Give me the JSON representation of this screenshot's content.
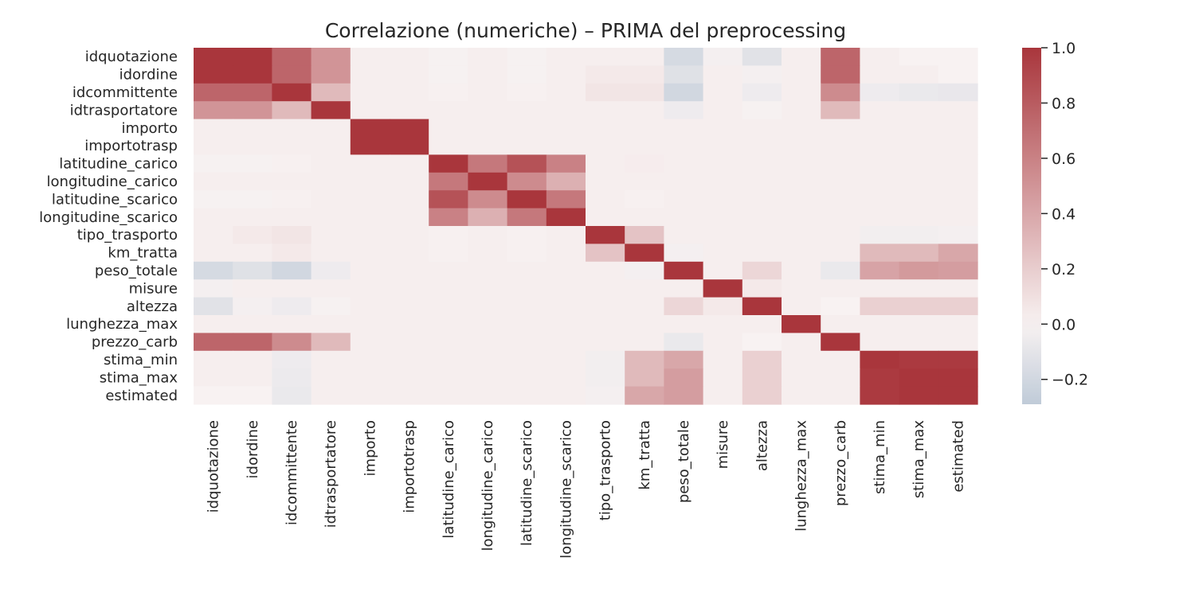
{
  "chart_data": {
    "type": "heatmap",
    "title": "Correlazione (numeriche) – PRIMA del preprocessing",
    "xlabel": "",
    "ylabel": "",
    "labels": [
      "idquotazione",
      "idordine",
      "idcommittente",
      "idtrasportatore",
      "importo",
      "importotrasp",
      "latitudine_carico",
      "longitudine_carico",
      "latitudine_scarico",
      "longitudine_scarico",
      "tipo_trasporto",
      "km_tratta",
      "peso_totale",
      "misure",
      "altezza",
      "lunghezza_max",
      "prezzo_carb",
      "stima_min",
      "stima_max",
      "estimated"
    ],
    "matrix": [
      [
        1.0,
        1.0,
        0.75,
        0.5,
        0.02,
        0.02,
        -0.01,
        0.02,
        -0.01,
        0.02,
        0.02,
        0.02,
        -0.18,
        -0.02,
        -0.12,
        0.02,
        0.75,
        0.02,
        0.0,
        0.0
      ],
      [
        1.0,
        1.0,
        0.75,
        0.5,
        0.02,
        0.02,
        -0.01,
        0.02,
        -0.01,
        0.02,
        0.05,
        0.05,
        -0.13,
        0.02,
        -0.02,
        0.02,
        0.75,
        0.02,
        0.02,
        0.0
      ],
      [
        0.75,
        0.75,
        1.0,
        0.3,
        0.02,
        0.02,
        0.01,
        0.02,
        0.01,
        0.02,
        0.07,
        0.07,
        -0.2,
        0.02,
        -0.05,
        0.02,
        0.55,
        -0.05,
        -0.07,
        -0.08
      ],
      [
        0.5,
        0.5,
        0.3,
        1.0,
        0.02,
        0.02,
        0.02,
        0.02,
        0.02,
        0.02,
        0.02,
        0.02,
        -0.05,
        0.02,
        -0.01,
        0.02,
        0.3,
        0.02,
        0.02,
        0.02
      ],
      [
        0.02,
        0.02,
        0.02,
        0.02,
        1.0,
        1.0,
        0.02,
        0.02,
        0.02,
        0.02,
        0.02,
        0.02,
        0.02,
        0.02,
        0.02,
        0.02,
        0.02,
        0.02,
        0.02,
        0.02
      ],
      [
        0.02,
        0.02,
        0.02,
        0.02,
        1.0,
        1.0,
        0.02,
        0.02,
        0.02,
        0.02,
        0.02,
        0.02,
        0.02,
        0.02,
        0.02,
        0.02,
        0.02,
        0.02,
        0.02,
        0.02
      ],
      [
        -0.01,
        -0.01,
        0.01,
        0.02,
        0.02,
        0.02,
        1.0,
        0.65,
        0.85,
        0.6,
        0.02,
        0.03,
        0.02,
        0.02,
        0.02,
        0.02,
        0.02,
        0.02,
        0.02,
        0.02
      ],
      [
        0.02,
        0.02,
        0.02,
        0.02,
        0.02,
        0.02,
        0.65,
        1.0,
        0.55,
        0.35,
        0.02,
        0.02,
        0.02,
        0.02,
        0.02,
        0.02,
        0.02,
        0.02,
        0.02,
        0.02
      ],
      [
        -0.01,
        -0.01,
        0.01,
        0.02,
        0.02,
        0.02,
        0.85,
        0.55,
        1.0,
        0.65,
        0.02,
        0.01,
        0.02,
        0.02,
        0.02,
        0.02,
        0.02,
        0.02,
        0.02,
        0.02
      ],
      [
        0.02,
        0.02,
        0.02,
        0.02,
        0.02,
        0.02,
        0.6,
        0.35,
        0.65,
        1.0,
        0.02,
        0.02,
        0.02,
        0.02,
        0.02,
        0.02,
        0.02,
        0.02,
        0.02,
        0.02
      ],
      [
        0.02,
        0.05,
        0.07,
        0.02,
        0.02,
        0.02,
        0.01,
        0.02,
        0.01,
        0.02,
        1.0,
        0.25,
        0.02,
        0.02,
        0.02,
        0.02,
        0.02,
        -0.03,
        -0.03,
        -0.02
      ],
      [
        0.02,
        0.02,
        0.05,
        0.02,
        0.02,
        0.02,
        0.01,
        0.02,
        0.01,
        0.02,
        0.25,
        1.0,
        -0.02,
        0.02,
        0.02,
        0.02,
        0.02,
        0.3,
        0.3,
        0.4
      ],
      [
        -0.18,
        -0.13,
        -0.2,
        -0.05,
        0.02,
        0.02,
        0.02,
        0.02,
        0.02,
        0.02,
        0.02,
        -0.02,
        1.0,
        0.02,
        0.15,
        0.02,
        -0.07,
        0.42,
        0.47,
        0.45
      ],
      [
        -0.02,
        0.02,
        0.02,
        0.02,
        0.02,
        0.02,
        0.02,
        0.02,
        0.02,
        0.02,
        0.02,
        0.02,
        0.02,
        1.0,
        0.05,
        0.02,
        0.02,
        0.02,
        0.02,
        0.02
      ],
      [
        -0.12,
        -0.02,
        -0.05,
        -0.01,
        0.02,
        0.02,
        0.02,
        0.02,
        0.02,
        0.02,
        0.02,
        0.02,
        0.15,
        0.05,
        1.0,
        0.02,
        0.0,
        0.18,
        0.18,
        0.18
      ],
      [
        0.02,
        0.02,
        0.02,
        0.02,
        0.02,
        0.02,
        0.02,
        0.02,
        0.02,
        0.02,
        0.02,
        0.02,
        0.02,
        0.02,
        0.02,
        1.0,
        0.02,
        0.02,
        0.02,
        0.02
      ],
      [
        0.75,
        0.75,
        0.55,
        0.3,
        0.02,
        0.02,
        0.02,
        0.02,
        0.02,
        0.02,
        0.02,
        0.02,
        -0.07,
        0.02,
        0.0,
        0.02,
        1.0,
        0.02,
        0.02,
        0.02
      ],
      [
        0.02,
        0.02,
        -0.05,
        0.02,
        0.02,
        0.02,
        0.02,
        0.02,
        0.02,
        0.02,
        -0.03,
        0.3,
        0.4,
        0.02,
        0.18,
        0.02,
        0.02,
        1.0,
        0.98,
        0.98
      ],
      [
        0.02,
        0.02,
        -0.06,
        0.02,
        0.02,
        0.02,
        0.02,
        0.02,
        0.02,
        0.02,
        -0.03,
        0.3,
        0.45,
        0.02,
        0.18,
        0.02,
        0.02,
        0.98,
        1.0,
        1.0
      ],
      [
        0.0,
        0.0,
        -0.07,
        0.02,
        0.02,
        0.02,
        0.02,
        0.02,
        0.02,
        0.02,
        -0.02,
        0.4,
        0.45,
        0.02,
        0.18,
        0.02,
        0.02,
        0.98,
        1.0,
        1.0
      ]
    ],
    "vmin": -0.29,
    "vmax": 1.0,
    "colormap": {
      "low": "#c0cbd8",
      "mid": "#f8f2f2",
      "high": "#a9363c"
    },
    "colorbar_ticks": [
      {
        "value": 1.0,
        "label": "1.0"
      },
      {
        "value": 0.8,
        "label": "0.8"
      },
      {
        "value": 0.6,
        "label": "0.6"
      },
      {
        "value": 0.4,
        "label": "0.4"
      },
      {
        "value": 0.2,
        "label": "0.2"
      },
      {
        "value": 0.0,
        "label": "0.0"
      },
      {
        "value": -0.2,
        "label": "−0.2"
      }
    ],
    "grid": false,
    "colorbar_position": "right"
  }
}
